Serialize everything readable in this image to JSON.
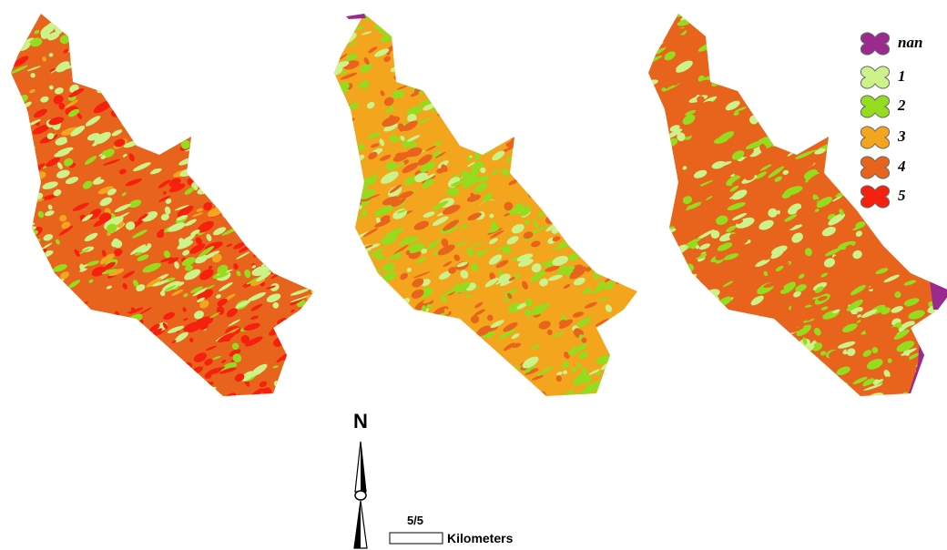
{
  "legend": {
    "items": [
      {
        "label": "nan",
        "color": "#9b2a8f"
      },
      {
        "label": "1",
        "color": "#ccf28a"
      },
      {
        "label": "2",
        "color": "#96dc1e"
      },
      {
        "label": "3",
        "color": "#f3a51e"
      },
      {
        "label": "4",
        "color": "#e8641c"
      },
      {
        "label": "5",
        "color": "#f5200e"
      }
    ]
  },
  "north_arrow": {
    "label": "N"
  },
  "scale_bar": {
    "value_label": "5/5",
    "unit": "Kilometers"
  }
}
